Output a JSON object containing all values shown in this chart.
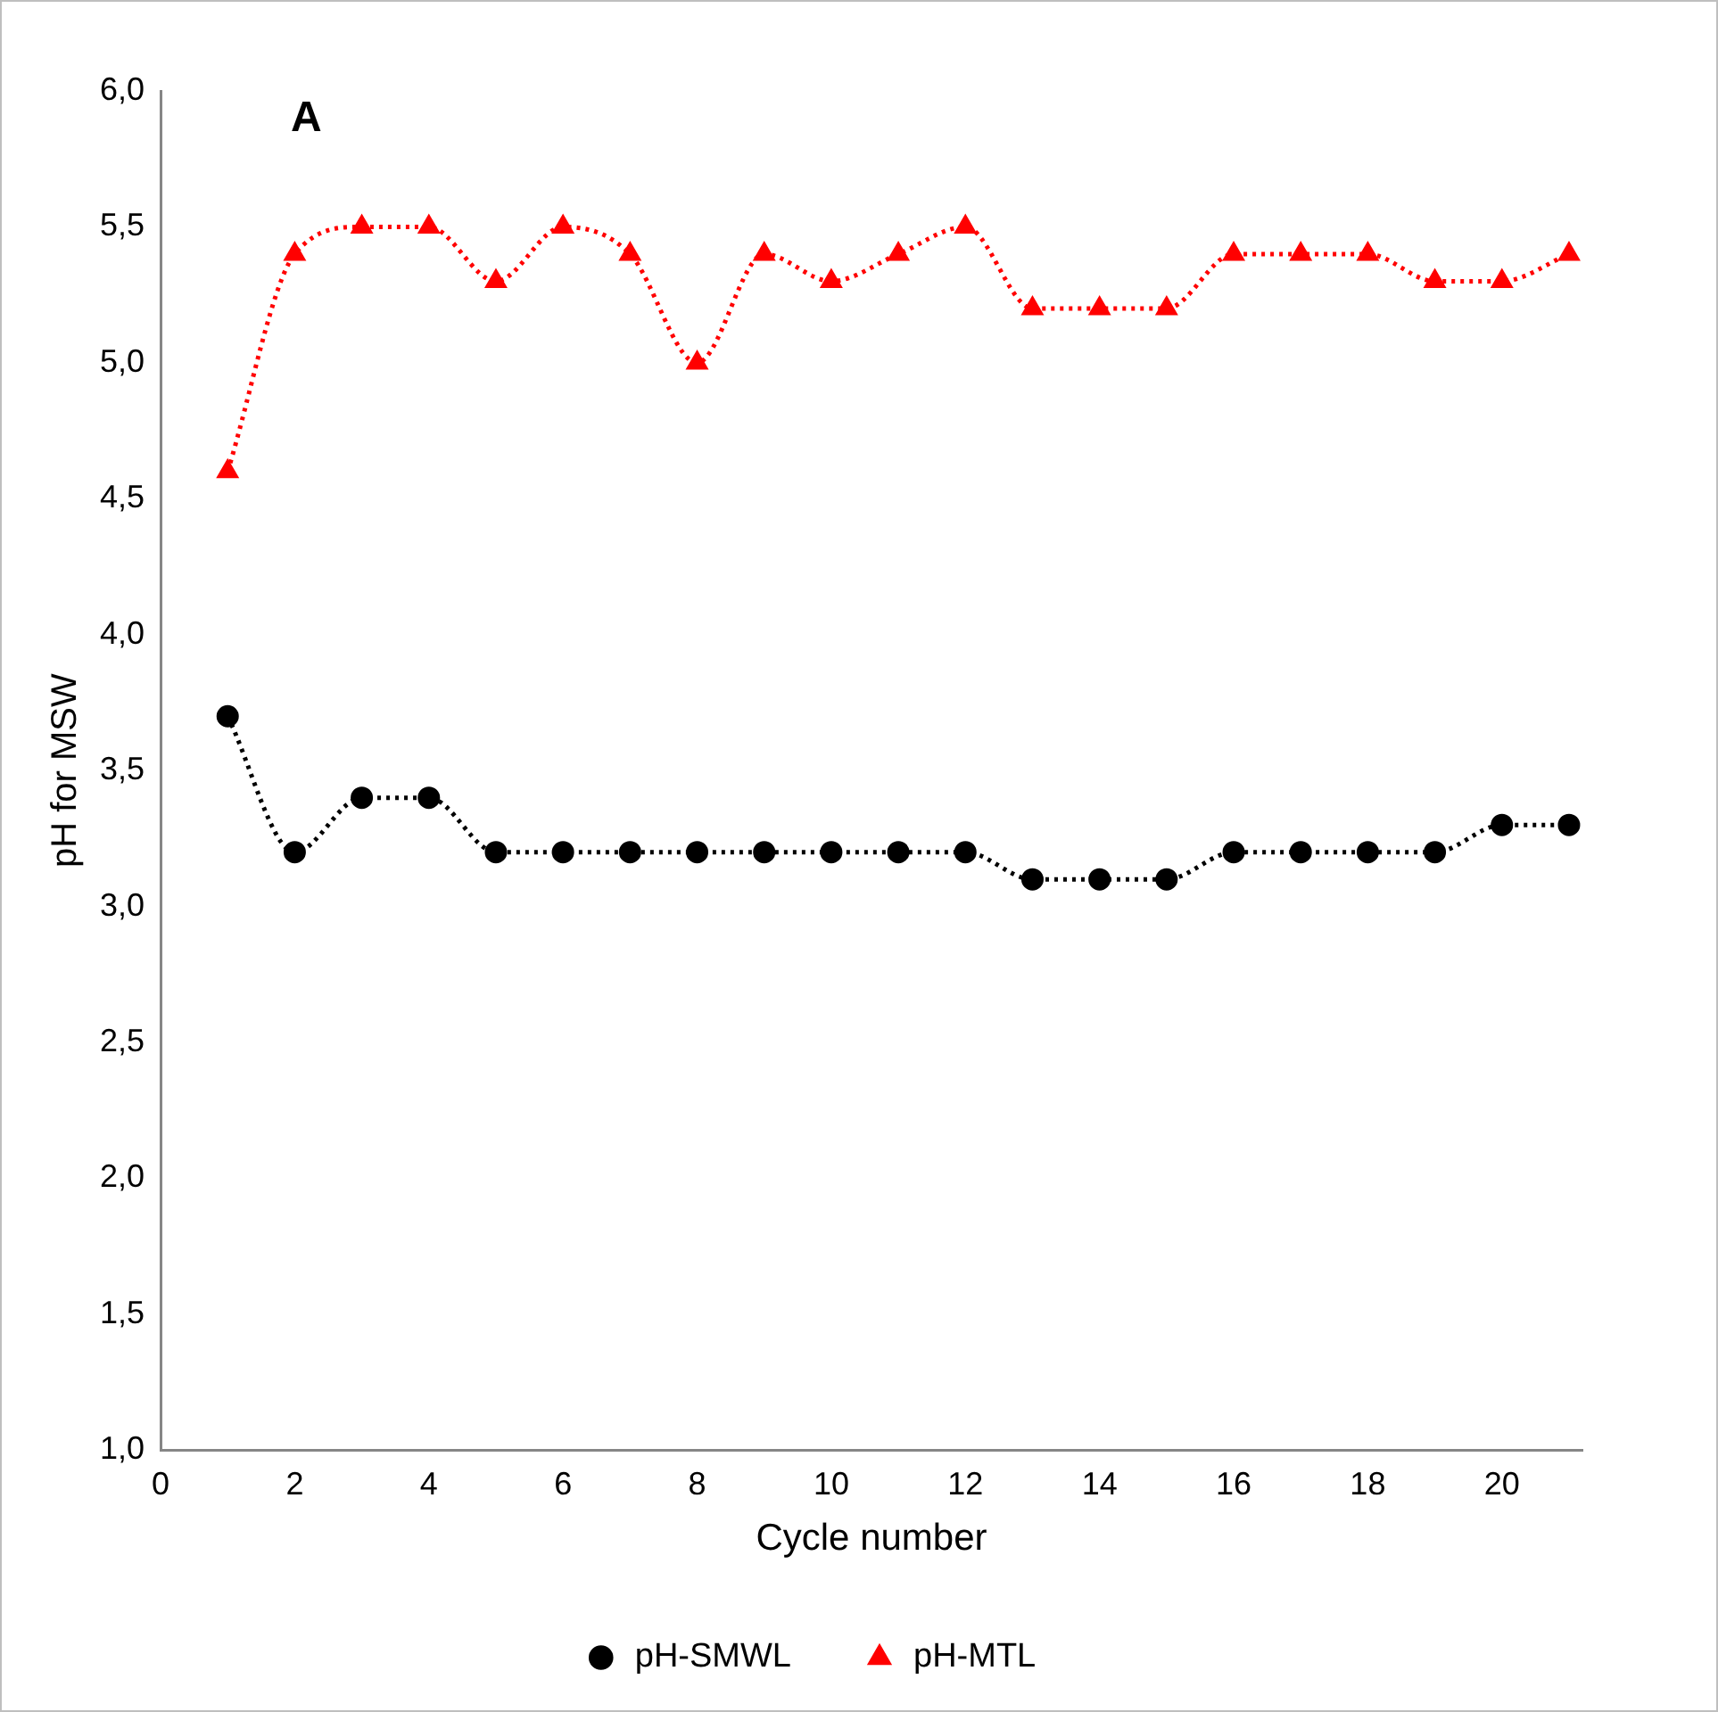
{
  "chart_data": {
    "type": "line",
    "xlabel": "Cycle number",
    "ylabel": "pH for MSW",
    "annotations": [
      "A"
    ],
    "x": [
      1,
      2,
      3,
      4,
      5,
      6,
      7,
      8,
      9,
      10,
      11,
      12,
      13,
      14,
      15,
      16,
      17,
      18,
      19,
      20,
      21
    ],
    "xlim": [
      0,
      21.2
    ],
    "xticks": [
      0,
      2,
      4,
      6,
      8,
      10,
      12,
      14,
      16,
      18,
      20
    ],
    "ylim": [
      1,
      6
    ],
    "yticks": [
      {
        "value": 1,
        "label": "1,0"
      },
      {
        "value": 1.5,
        "label": "1,5"
      },
      {
        "value": 2,
        "label": "2,0"
      },
      {
        "value": 2.5,
        "label": "2,5"
      },
      {
        "value": 3,
        "label": "3,0"
      },
      {
        "value": 3.5,
        "label": "3,5"
      },
      {
        "value": 4,
        "label": "4,0"
      },
      {
        "value": 4.5,
        "label": "4,5"
      },
      {
        "value": 5,
        "label": "5,0"
      },
      {
        "value": 5.5,
        "label": "5,5"
      },
      {
        "value": 6,
        "label": "6,0"
      }
    ],
    "grid": false,
    "legend": "bottom",
    "line_style": "dotted",
    "series": [
      {
        "name": "pH-SMWL",
        "color": "#000000",
        "marker": "circle",
        "values": [
          3.7,
          3.2,
          3.4,
          3.4,
          3.2,
          3.2,
          3.2,
          3.2,
          3.2,
          3.2,
          3.2,
          3.2,
          3.1,
          3.1,
          3.1,
          3.2,
          3.2,
          3.2,
          3.2,
          3.3,
          3.3
        ]
      },
      {
        "name": "pH-MTL",
        "color": "#ff0000",
        "marker": "triangle",
        "values": [
          4.6,
          5.4,
          5.5,
          5.5,
          5.3,
          5.5,
          5.4,
          5.0,
          5.4,
          5.3,
          5.4,
          5.5,
          5.2,
          5.2,
          5.2,
          5.4,
          5.4,
          5.4,
          5.3,
          5.3,
          5.4
        ]
      }
    ]
  }
}
